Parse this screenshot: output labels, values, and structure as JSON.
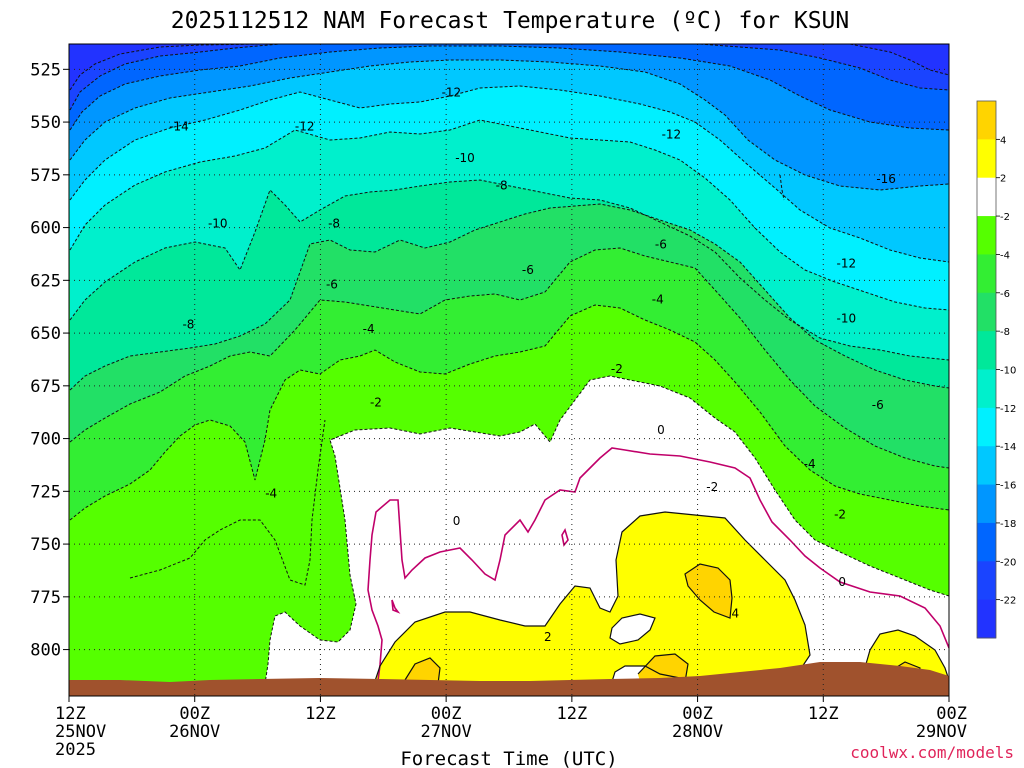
{
  "chart_data": {
    "type": "heatmap",
    "title": "2025112512 NAM Forecast Temperature (ºC) for KSUN",
    "xlabel": "Forecast Time (UTC)",
    "ylabel": "",
    "x_ticks": [
      {
        "hour": 12,
        "lines": [
          "12Z",
          "25NOV",
          "2025"
        ]
      },
      {
        "hour": 24,
        "lines": [
          "00Z",
          "26NOV"
        ]
      },
      {
        "hour": 36,
        "lines": [
          "12Z"
        ]
      },
      {
        "hour": 48,
        "lines": [
          "00Z",
          "27NOV"
        ]
      },
      {
        "hour": 60,
        "lines": [
          "12Z"
        ]
      },
      {
        "hour": 72,
        "lines": [
          "00Z",
          "28NOV"
        ]
      },
      {
        "hour": 84,
        "lines": [
          "12Z"
        ]
      },
      {
        "hour": 96,
        "lines": [
          "00Z",
          "29NOV"
        ]
      }
    ],
    "xlim": [
      12,
      96
    ],
    "y_ticks": [
      525,
      550,
      575,
      600,
      625,
      650,
      675,
      700,
      725,
      750,
      775,
      800
    ],
    "ylim": [
      513,
      822
    ],
    "colorbar": {
      "labels": [
        "4",
        "2",
        "-2",
        "-4",
        "-6",
        "-8",
        "-10",
        "-12",
        "-14",
        "-16",
        "-18",
        "-20",
        "-22"
      ],
      "bins": [
        {
          "range": [
            4,
            6
          ],
          "color": "#ffd400"
        },
        {
          "range": [
            2,
            4
          ],
          "color": "#ffff00"
        },
        {
          "range": [
            -2,
            2
          ],
          "color": "#ffffff"
        },
        {
          "range": [
            -4,
            -2
          ],
          "color": "#55ff00"
        },
        {
          "range": [
            -6,
            -4
          ],
          "color": "#33ee33"
        },
        {
          "range": [
            -8,
            -6
          ],
          "color": "#22e066"
        },
        {
          "range": [
            -10,
            -8
          ],
          "color": "#00e89a"
        },
        {
          "range": [
            -12,
            -10
          ],
          "color": "#00f0cc"
        },
        {
          "range": [
            -14,
            -12
          ],
          "color": "#00f0ff"
        },
        {
          "range": [
            -16,
            -14
          ],
          "color": "#00c8ff"
        },
        {
          "range": [
            -18,
            -16
          ],
          "color": "#0096ff"
        },
        {
          "range": [
            -20,
            -18
          ],
          "color": "#0066ff"
        },
        {
          "range": [
            -22,
            -20
          ],
          "color": "#1a44ff"
        },
        {
          "range": [
            -24,
            -22
          ],
          "color": "#2233ff"
        }
      ]
    },
    "contour_labels": [
      {
        "text": "-12",
        "hour": 48.5,
        "p": 536
      },
      {
        "text": "-14",
        "hour": 22.5,
        "p": 552
      },
      {
        "text": "-12",
        "hour": 34.5,
        "p": 552
      },
      {
        "text": "-12",
        "hour": 69.5,
        "p": 556
      },
      {
        "text": "-10",
        "hour": 49.8,
        "p": 567
      },
      {
        "text": "-8",
        "hour": 53.3,
        "p": 580
      },
      {
        "text": "-16",
        "hour": 90,
        "p": 577
      },
      {
        "text": "-10",
        "hour": 26.2,
        "p": 598
      },
      {
        "text": "-8",
        "hour": 37.3,
        "p": 598
      },
      {
        "text": "-6",
        "hour": 68.5,
        "p": 608
      },
      {
        "text": "-6",
        "hour": 55.8,
        "p": 620
      },
      {
        "text": "-12",
        "hour": 86.2,
        "p": 617
      },
      {
        "text": "-6",
        "hour": 37.1,
        "p": 627
      },
      {
        "text": "-4",
        "hour": 68.2,
        "p": 634
      },
      {
        "text": "-8",
        "hour": 23.4,
        "p": 646
      },
      {
        "text": "-10",
        "hour": 86.2,
        "p": 643
      },
      {
        "text": "-4",
        "hour": 40.6,
        "p": 648
      },
      {
        "text": "-2",
        "hour": 64.3,
        "p": 667
      },
      {
        "text": "-2",
        "hour": 41.3,
        "p": 683
      },
      {
        "text": "-6",
        "hour": 89.2,
        "p": 684
      },
      {
        "text": "0",
        "hour": 68.5,
        "p": 696
      },
      {
        "text": "-4",
        "hour": 82.7,
        "p": 712
      },
      {
        "text": "-2",
        "hour": 73.4,
        "p": 723
      },
      {
        "text": "-4",
        "hour": 31.3,
        "p": 726
      },
      {
        "text": "-2",
        "hour": 85.6,
        "p": 736
      },
      {
        "text": "0",
        "hour": 49,
        "p": 739
      },
      {
        "text": "0",
        "hour": 85.8,
        "p": 768
      },
      {
        "text": "4",
        "hour": 75.6,
        "p": 783
      },
      {
        "text": "2",
        "hour": 57.7,
        "p": 794
      }
    ]
  },
  "credit": "coolwx.com/models",
  "colors": {
    "ground": "#a0522d",
    "zero_isotherm": "#c0006a"
  }
}
